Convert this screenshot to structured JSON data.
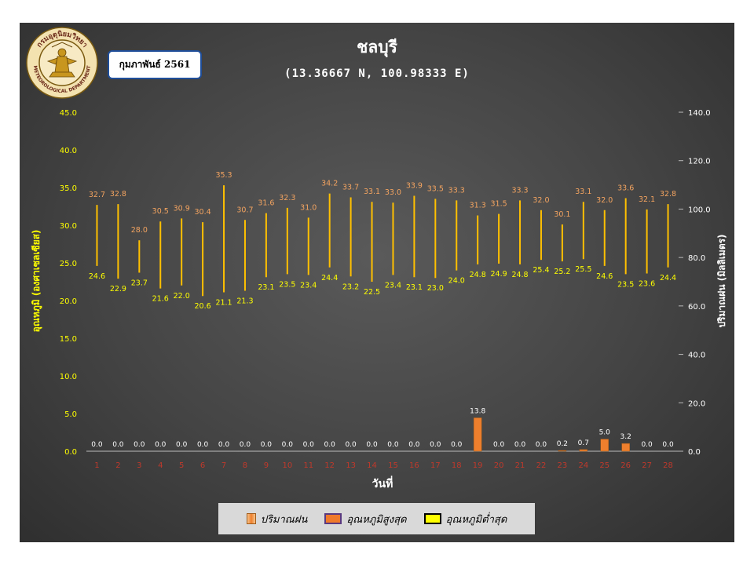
{
  "header": {
    "title": "ชลบุรี",
    "subtitle": "(13.36667 N, 100.98333 E)",
    "month_label": "กุมภาพันธ์ 2561",
    "logo_text_top": "กรมอุตุนิยมวิทยา",
    "logo_text_bottom": "METEOROLOGICAL DEPARTMENT"
  },
  "legend": {
    "rain": "ปริมาณฝน",
    "max": "อุณหภูมิสูงสุด",
    "min": "อุณหภูมิต่ำสุด"
  },
  "colors": {
    "temp_line": "#ffc000",
    "max_label": "#f4a460",
    "min_label": "#ffff00",
    "rain_bar": "#ee7f2d",
    "rain_label": "#ffffff",
    "left_axis": "#ffff00",
    "right_axis": "#ffffff",
    "x_ticks": "#c0392b"
  },
  "chart_data": {
    "type": "bar",
    "xlabel": "วันที่",
    "ylabel": "อุณหภูมิ (องศาเซลเซียส)",
    "ylabel_right": "ปริมาณฝน (มิลลิเมตร)",
    "ylim": [
      0,
      45
    ],
    "ylim_right": [
      0,
      140
    ],
    "yticks": [
      "0.0",
      "5.0",
      "10.0",
      "15.0",
      "20.0",
      "25.0",
      "30.0",
      "35.0",
      "40.0",
      "45.0"
    ],
    "yticks_right": [
      "0.0",
      "20.0",
      "40.0",
      "60.0",
      "80.0",
      "100.0",
      "120.0",
      "140.0"
    ],
    "categories": [
      "1",
      "2",
      "3",
      "4",
      "5",
      "6",
      "7",
      "8",
      "9",
      "10",
      "11",
      "12",
      "13",
      "14",
      "15",
      "16",
      "17",
      "18",
      "19",
      "20",
      "21",
      "22",
      "23",
      "24",
      "25",
      "26",
      "27",
      "28"
    ],
    "series": [
      {
        "name": "อุณหภูมิสูงสุด",
        "values": [
          32.7,
          32.8,
          28.0,
          30.5,
          30.9,
          30.4,
          35.3,
          30.7,
          31.6,
          32.3,
          31.0,
          34.2,
          33.7,
          33.1,
          33.0,
          33.9,
          33.5,
          33.3,
          31.3,
          31.5,
          33.3,
          32.0,
          30.1,
          33.1,
          32.0,
          33.6,
          32.1,
          32.8
        ]
      },
      {
        "name": "อุณหภูมิต่ำสุด",
        "values": [
          24.6,
          22.9,
          23.7,
          21.6,
          22.0,
          20.6,
          21.1,
          21.3,
          23.1,
          23.5,
          23.4,
          24.4,
          23.2,
          22.5,
          23.4,
          23.1,
          23.0,
          24.0,
          24.8,
          24.9,
          24.8,
          25.4,
          25.2,
          25.5,
          24.6,
          23.5,
          23.6,
          24.4
        ]
      },
      {
        "name": "ปริมาณฝน",
        "values": [
          0.0,
          0.0,
          0.0,
          0.0,
          0.0,
          0.0,
          0.0,
          0.0,
          0.0,
          0.0,
          0.0,
          0.0,
          0.0,
          0.0,
          0.0,
          0.0,
          0.0,
          0.0,
          13.8,
          0.0,
          0.0,
          0.0,
          0.2,
          0.7,
          5.0,
          3.2,
          0.0,
          0.0
        ]
      }
    ]
  }
}
